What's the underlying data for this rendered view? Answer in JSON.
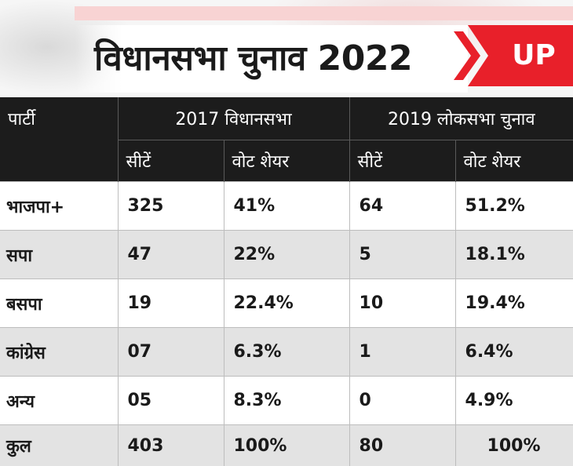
{
  "header": {
    "title": "विधानसभा चुनाव 2022",
    "badge": "UP"
  },
  "table": {
    "party_header": "पार्टी",
    "group_2017": "2017 विधानसभा",
    "group_2019": "2019 लोकसभा चुनाव",
    "seats_label": "सीटें",
    "vote_share_label": "वोट शेयर",
    "rows": [
      {
        "party": "भाजपा+",
        "seats_2017": "325",
        "vote_2017": "41%",
        "seats_2019": "64",
        "vote_2019": "51.2%"
      },
      {
        "party": "सपा",
        "seats_2017": "47",
        "vote_2017": "22%",
        "seats_2019": "5",
        "vote_2019": "18.1%"
      },
      {
        "party": "बसपा",
        "seats_2017": "19",
        "vote_2017": "22.4%",
        "seats_2019": "10",
        "vote_2019": "19.4%"
      },
      {
        "party": "कांग्रेस",
        "seats_2017": "07",
        "vote_2017": "6.3%",
        "seats_2019": "1",
        "vote_2019": "6.4%"
      },
      {
        "party": "अन्य",
        "seats_2017": "05",
        "vote_2017": "8.3%",
        "seats_2019": "0",
        "vote_2019": "4.9%"
      },
      {
        "party": "कुल",
        "seats_2017": "403",
        "vote_2017": "100%",
        "seats_2019": "80",
        "vote_2019": "100%"
      }
    ]
  },
  "colors": {
    "header_bg": "#1c1c1c",
    "badge_red": "#e8202a",
    "row_grey": "#e3e3e3",
    "row_white": "#ffffff"
  }
}
